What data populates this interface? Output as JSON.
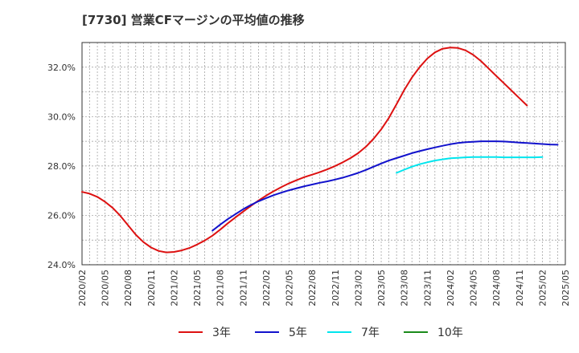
{
  "chart_data": {
    "type": "line",
    "title": "[7730]  営業CFマージンの平均値の推移",
    "xlabel": "",
    "ylabel": "",
    "ylim": [
      24.0,
      33.0
    ],
    "y_ticks": [
      "24.0%",
      "26.0%",
      "28.0%",
      "30.0%",
      "32.0%"
    ],
    "y_tick_values": [
      24,
      26,
      28,
      30,
      32
    ],
    "x_ticks": [
      "2020/02",
      "2020/05",
      "2020/08",
      "2020/11",
      "2021/02",
      "2021/05",
      "2021/08",
      "2021/11",
      "2022/02",
      "2022/05",
      "2022/08",
      "2022/11",
      "2023/02",
      "2023/05",
      "2023/08",
      "2023/11",
      "2024/02",
      "2024/05",
      "2024/08",
      "2024/11",
      "2025/02",
      "2025/05"
    ],
    "grid": true,
    "legend_position": "bottom",
    "series": [
      {
        "name": "3年",
        "color": "#dd1111",
        "start": "2020/02",
        "values": [
          26.95,
          26.88,
          26.75,
          26.55,
          26.3,
          25.98,
          25.6,
          25.22,
          24.92,
          24.7,
          24.56,
          24.5,
          24.52,
          24.58,
          24.68,
          24.82,
          24.98,
          25.18,
          25.42,
          25.68,
          25.92,
          26.15,
          26.38,
          26.6,
          26.8,
          26.98,
          27.15,
          27.3,
          27.43,
          27.55,
          27.65,
          27.75,
          27.87,
          28.0,
          28.15,
          28.32,
          28.52,
          28.78,
          29.1,
          29.48,
          29.95,
          30.5,
          31.08,
          31.58,
          32.0,
          32.35,
          32.6,
          32.75,
          32.8,
          32.78,
          32.68,
          32.5,
          32.25,
          31.95,
          31.65,
          31.35,
          31.05,
          30.75,
          30.45
        ]
      },
      {
        "name": "5年",
        "color": "#1111cc",
        "start": "2021/07",
        "values": [
          25.38,
          25.62,
          25.85,
          26.05,
          26.25,
          26.42,
          26.57,
          26.7,
          26.82,
          26.92,
          27.02,
          27.1,
          27.18,
          27.25,
          27.32,
          27.38,
          27.45,
          27.53,
          27.62,
          27.72,
          27.84,
          27.97,
          28.1,
          28.22,
          28.32,
          28.42,
          28.52,
          28.6,
          28.68,
          28.75,
          28.82,
          28.88,
          28.93,
          28.96,
          28.98,
          29.0,
          29.0,
          29.0,
          28.99,
          28.97,
          28.95,
          28.93,
          28.91,
          28.89,
          28.87,
          28.86
        ]
      },
      {
        "name": "7年",
        "color": "#00e5ee",
        "start": "2023/07",
        "values": [
          27.72,
          27.85,
          27.97,
          28.07,
          28.15,
          28.22,
          28.27,
          28.31,
          28.33,
          28.35,
          28.36,
          28.36,
          28.36,
          28.36,
          28.35,
          28.35,
          28.35,
          28.35,
          28.35,
          28.36
        ]
      },
      {
        "name": "10年",
        "color": "#1a8a1a",
        "start": "2025/02",
        "values": []
      }
    ]
  }
}
